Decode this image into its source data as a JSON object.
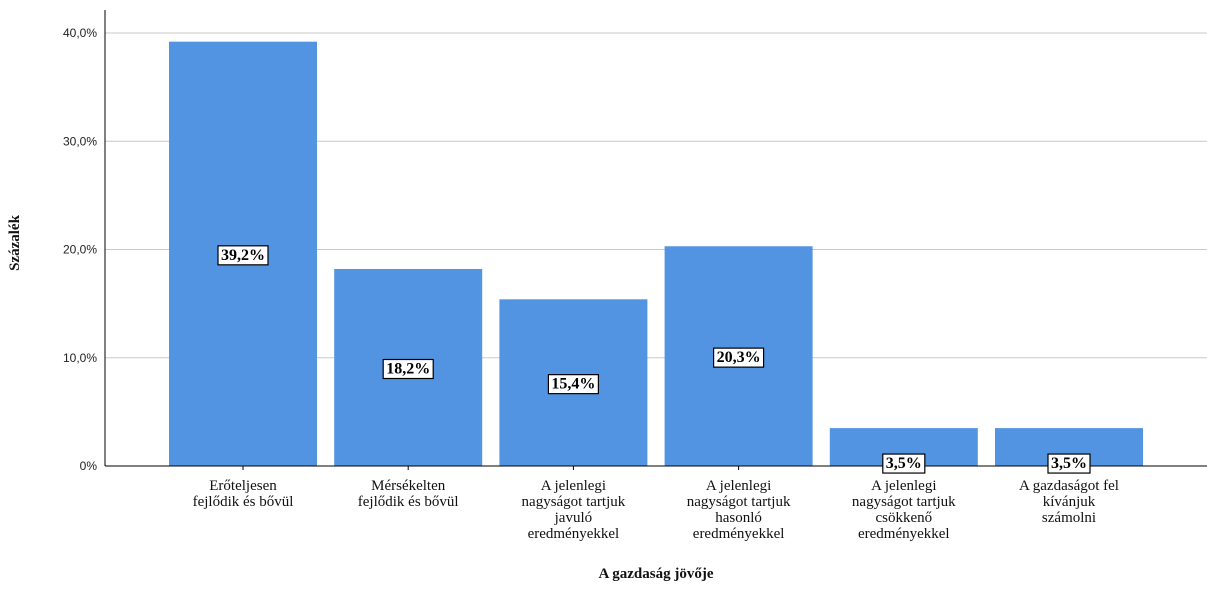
{
  "chart_data": {
    "type": "bar",
    "xlabel": "A gazdaság jövője",
    "ylabel": "Százalék",
    "ylim": [
      0,
      40
    ],
    "y_ticks": [
      "0%",
      "10,0%",
      "20,0%",
      "30,0%",
      "40,0%"
    ],
    "y_tick_values": [
      0,
      10,
      20,
      30,
      40
    ],
    "grid": true,
    "bar_color": "#5294e2",
    "categories": [
      [
        "Erőteljesen",
        "fejlődik és bővül"
      ],
      [
        "Mérsékelten",
        "fejlődik és bővül"
      ],
      [
        "A jelenlegi",
        "nagyságot tartjuk",
        "javuló",
        "eredményekkel"
      ],
      [
        "A jelenlegi",
        "nagyságot tartjuk",
        "hasonló",
        "eredményekkel"
      ],
      [
        "A jelenlegi",
        "nagyságot tartjuk",
        "csökkenő",
        "eredményekkel"
      ],
      [
        "A gazdaságot fel",
        "kívánjuk",
        "számolni"
      ]
    ],
    "values": [
      39.2,
      18.2,
      15.4,
      20.3,
      3.5,
      3.5
    ],
    "data_labels": [
      "39,2%",
      "18,2%",
      "15,4%",
      "20,3%",
      "3,5%",
      "3,5%"
    ]
  }
}
